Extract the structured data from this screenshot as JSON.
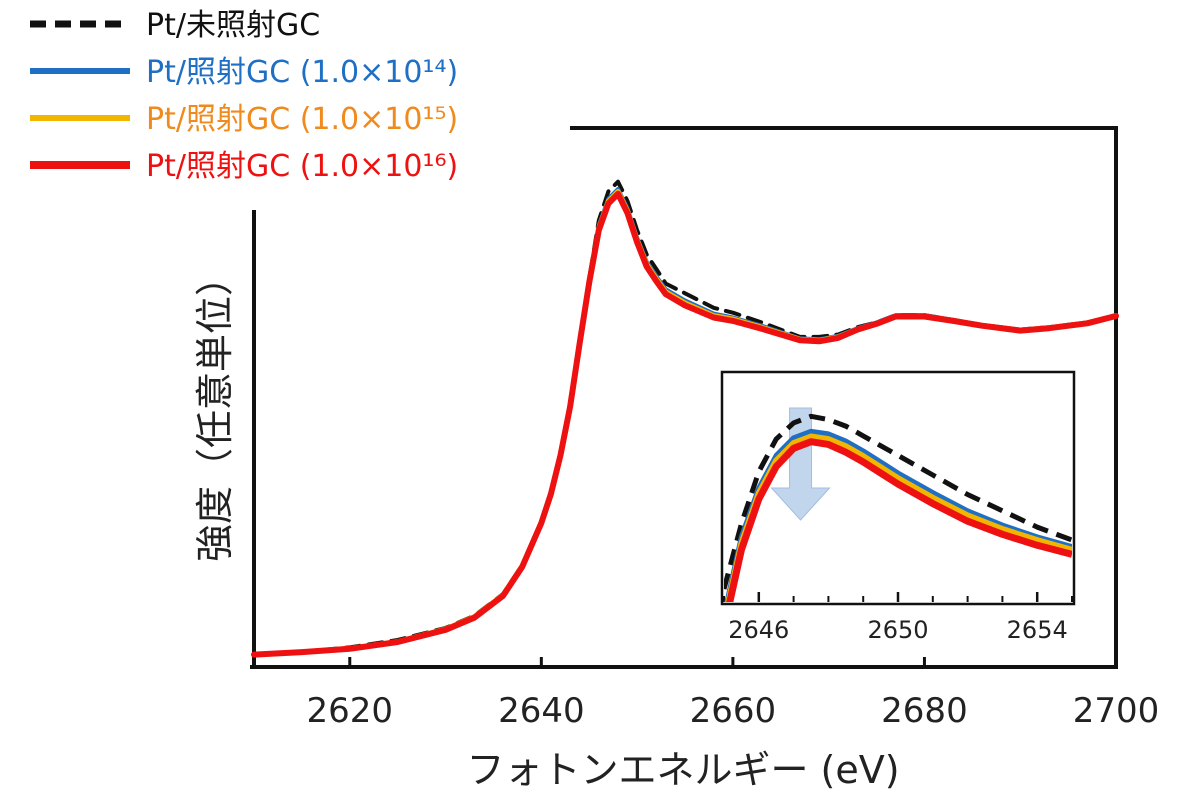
{
  "chart_data": {
    "type": "line",
    "xlabel": "フォトンエネルギー (eV)",
    "ylabel": "強度（任意単位）",
    "xlim": [
      2610,
      2700
    ],
    "xticks": [
      2620,
      2640,
      2660,
      2680,
      2700
    ],
    "grid": false,
    "legend_position": "top-left",
    "legend": [
      {
        "label": "Pt/未照射GC",
        "style": "dashed",
        "color": "#111111"
      },
      {
        "label": "Pt/照射GC (1.0×10¹⁴)",
        "style": "solid",
        "color": "#1f6fc4"
      },
      {
        "label": "Pt/照射GC (1.0×10¹⁵)",
        "style": "solid",
        "color": "#f2b600",
        "text_color": "#f08a1c"
      },
      {
        "label": "Pt/照射GC (1.0×10¹⁶)",
        "style": "solid",
        "color": "#ee1111"
      }
    ],
    "x": [
      2610,
      2615,
      2620,
      2625,
      2630,
      2633,
      2636,
      2638,
      2640,
      2641,
      2642,
      2643,
      2644,
      2645,
      2646,
      2647,
      2648,
      2649,
      2650,
      2651,
      2652,
      2653,
      2655,
      2658,
      2660,
      2663,
      2667,
      2669,
      2671,
      2673,
      2675,
      2677,
      2680,
      2683,
      2686,
      2690,
      2693,
      2697,
      2700
    ],
    "series": [
      {
        "name": "Pt/未照射GC",
        "values": [
          0.005,
          0.01,
          0.02,
          0.035,
          0.06,
          0.085,
          0.13,
          0.19,
          0.28,
          0.34,
          0.42,
          0.52,
          0.65,
          0.78,
          0.9,
          0.96,
          0.98,
          0.94,
          0.88,
          0.83,
          0.8,
          0.77,
          0.75,
          0.72,
          0.71,
          0.69,
          0.66,
          0.66,
          0.665,
          0.68,
          0.69,
          0.705,
          0.705,
          0.695,
          0.685,
          0.675,
          0.68,
          0.69,
          0.705
        ]
      },
      {
        "name": "Pt/照射GC (1.0×10¹⁴)",
        "values": [
          0.005,
          0.01,
          0.018,
          0.032,
          0.058,
          0.083,
          0.128,
          0.188,
          0.278,
          0.338,
          0.418,
          0.518,
          0.648,
          0.776,
          0.89,
          0.945,
          0.965,
          0.925,
          0.865,
          0.815,
          0.785,
          0.758,
          0.735,
          0.708,
          0.7,
          0.683,
          0.657,
          0.655,
          0.662,
          0.678,
          0.69,
          0.705,
          0.705,
          0.695,
          0.685,
          0.675,
          0.68,
          0.69,
          0.705
        ]
      },
      {
        "name": "Pt/照射GC (1.0×10¹⁵)",
        "values": [
          0.005,
          0.01,
          0.018,
          0.032,
          0.058,
          0.083,
          0.128,
          0.188,
          0.278,
          0.338,
          0.418,
          0.518,
          0.648,
          0.775,
          0.885,
          0.94,
          0.96,
          0.92,
          0.86,
          0.81,
          0.78,
          0.753,
          0.73,
          0.704,
          0.697,
          0.68,
          0.655,
          0.653,
          0.66,
          0.676,
          0.688,
          0.703,
          0.703,
          0.694,
          0.684,
          0.674,
          0.679,
          0.689,
          0.704
        ]
      },
      {
        "name": "Pt/照射GC (1.0×10¹⁶)",
        "values": [
          0.005,
          0.01,
          0.017,
          0.031,
          0.056,
          0.081,
          0.126,
          0.186,
          0.276,
          0.336,
          0.416,
          0.516,
          0.646,
          0.772,
          0.88,
          0.935,
          0.955,
          0.915,
          0.855,
          0.805,
          0.775,
          0.748,
          0.725,
          0.7,
          0.693,
          0.677,
          0.653,
          0.651,
          0.658,
          0.675,
          0.687,
          0.702,
          0.702,
          0.693,
          0.683,
          0.673,
          0.678,
          0.688,
          0.703
        ]
      }
    ],
    "inset": {
      "xlim": [
        2645,
        2655
      ],
      "xticks": [
        2646,
        2650,
        2654
      ],
      "x": [
        2645,
        2645.5,
        2646,
        2646.5,
        2647,
        2647.5,
        2648,
        2648.5,
        2649,
        2649.5,
        2650,
        2651,
        2652,
        2653,
        2654,
        2655
      ],
      "series": [
        {
          "name": "Pt/未照射GC",
          "values": [
            0.72,
            0.82,
            0.9,
            0.95,
            0.975,
            0.985,
            0.98,
            0.97,
            0.955,
            0.94,
            0.925,
            0.895,
            0.865,
            0.84,
            0.815,
            0.795
          ]
        },
        {
          "name": "Pt/照射GC (1.0×10¹⁴)",
          "values": [
            0.68,
            0.8,
            0.875,
            0.925,
            0.952,
            0.962,
            0.958,
            0.947,
            0.932,
            0.915,
            0.898,
            0.868,
            0.84,
            0.818,
            0.8,
            0.785
          ]
        },
        {
          "name": "Pt/照射GC (1.0×10¹⁵)",
          "values": [
            0.67,
            0.79,
            0.867,
            0.917,
            0.944,
            0.954,
            0.95,
            0.939,
            0.924,
            0.907,
            0.89,
            0.86,
            0.833,
            0.812,
            0.795,
            0.78
          ]
        },
        {
          "name": "Pt/照射GC (1.0×10¹⁶)",
          "values": [
            0.66,
            0.78,
            0.858,
            0.908,
            0.936,
            0.946,
            0.942,
            0.93,
            0.915,
            0.898,
            0.881,
            0.851,
            0.824,
            0.804,
            0.787,
            0.773
          ]
        }
      ],
      "arrow": {
        "x": 2647.2,
        "color": "#9fbfe3",
        "direction": "down"
      }
    }
  }
}
